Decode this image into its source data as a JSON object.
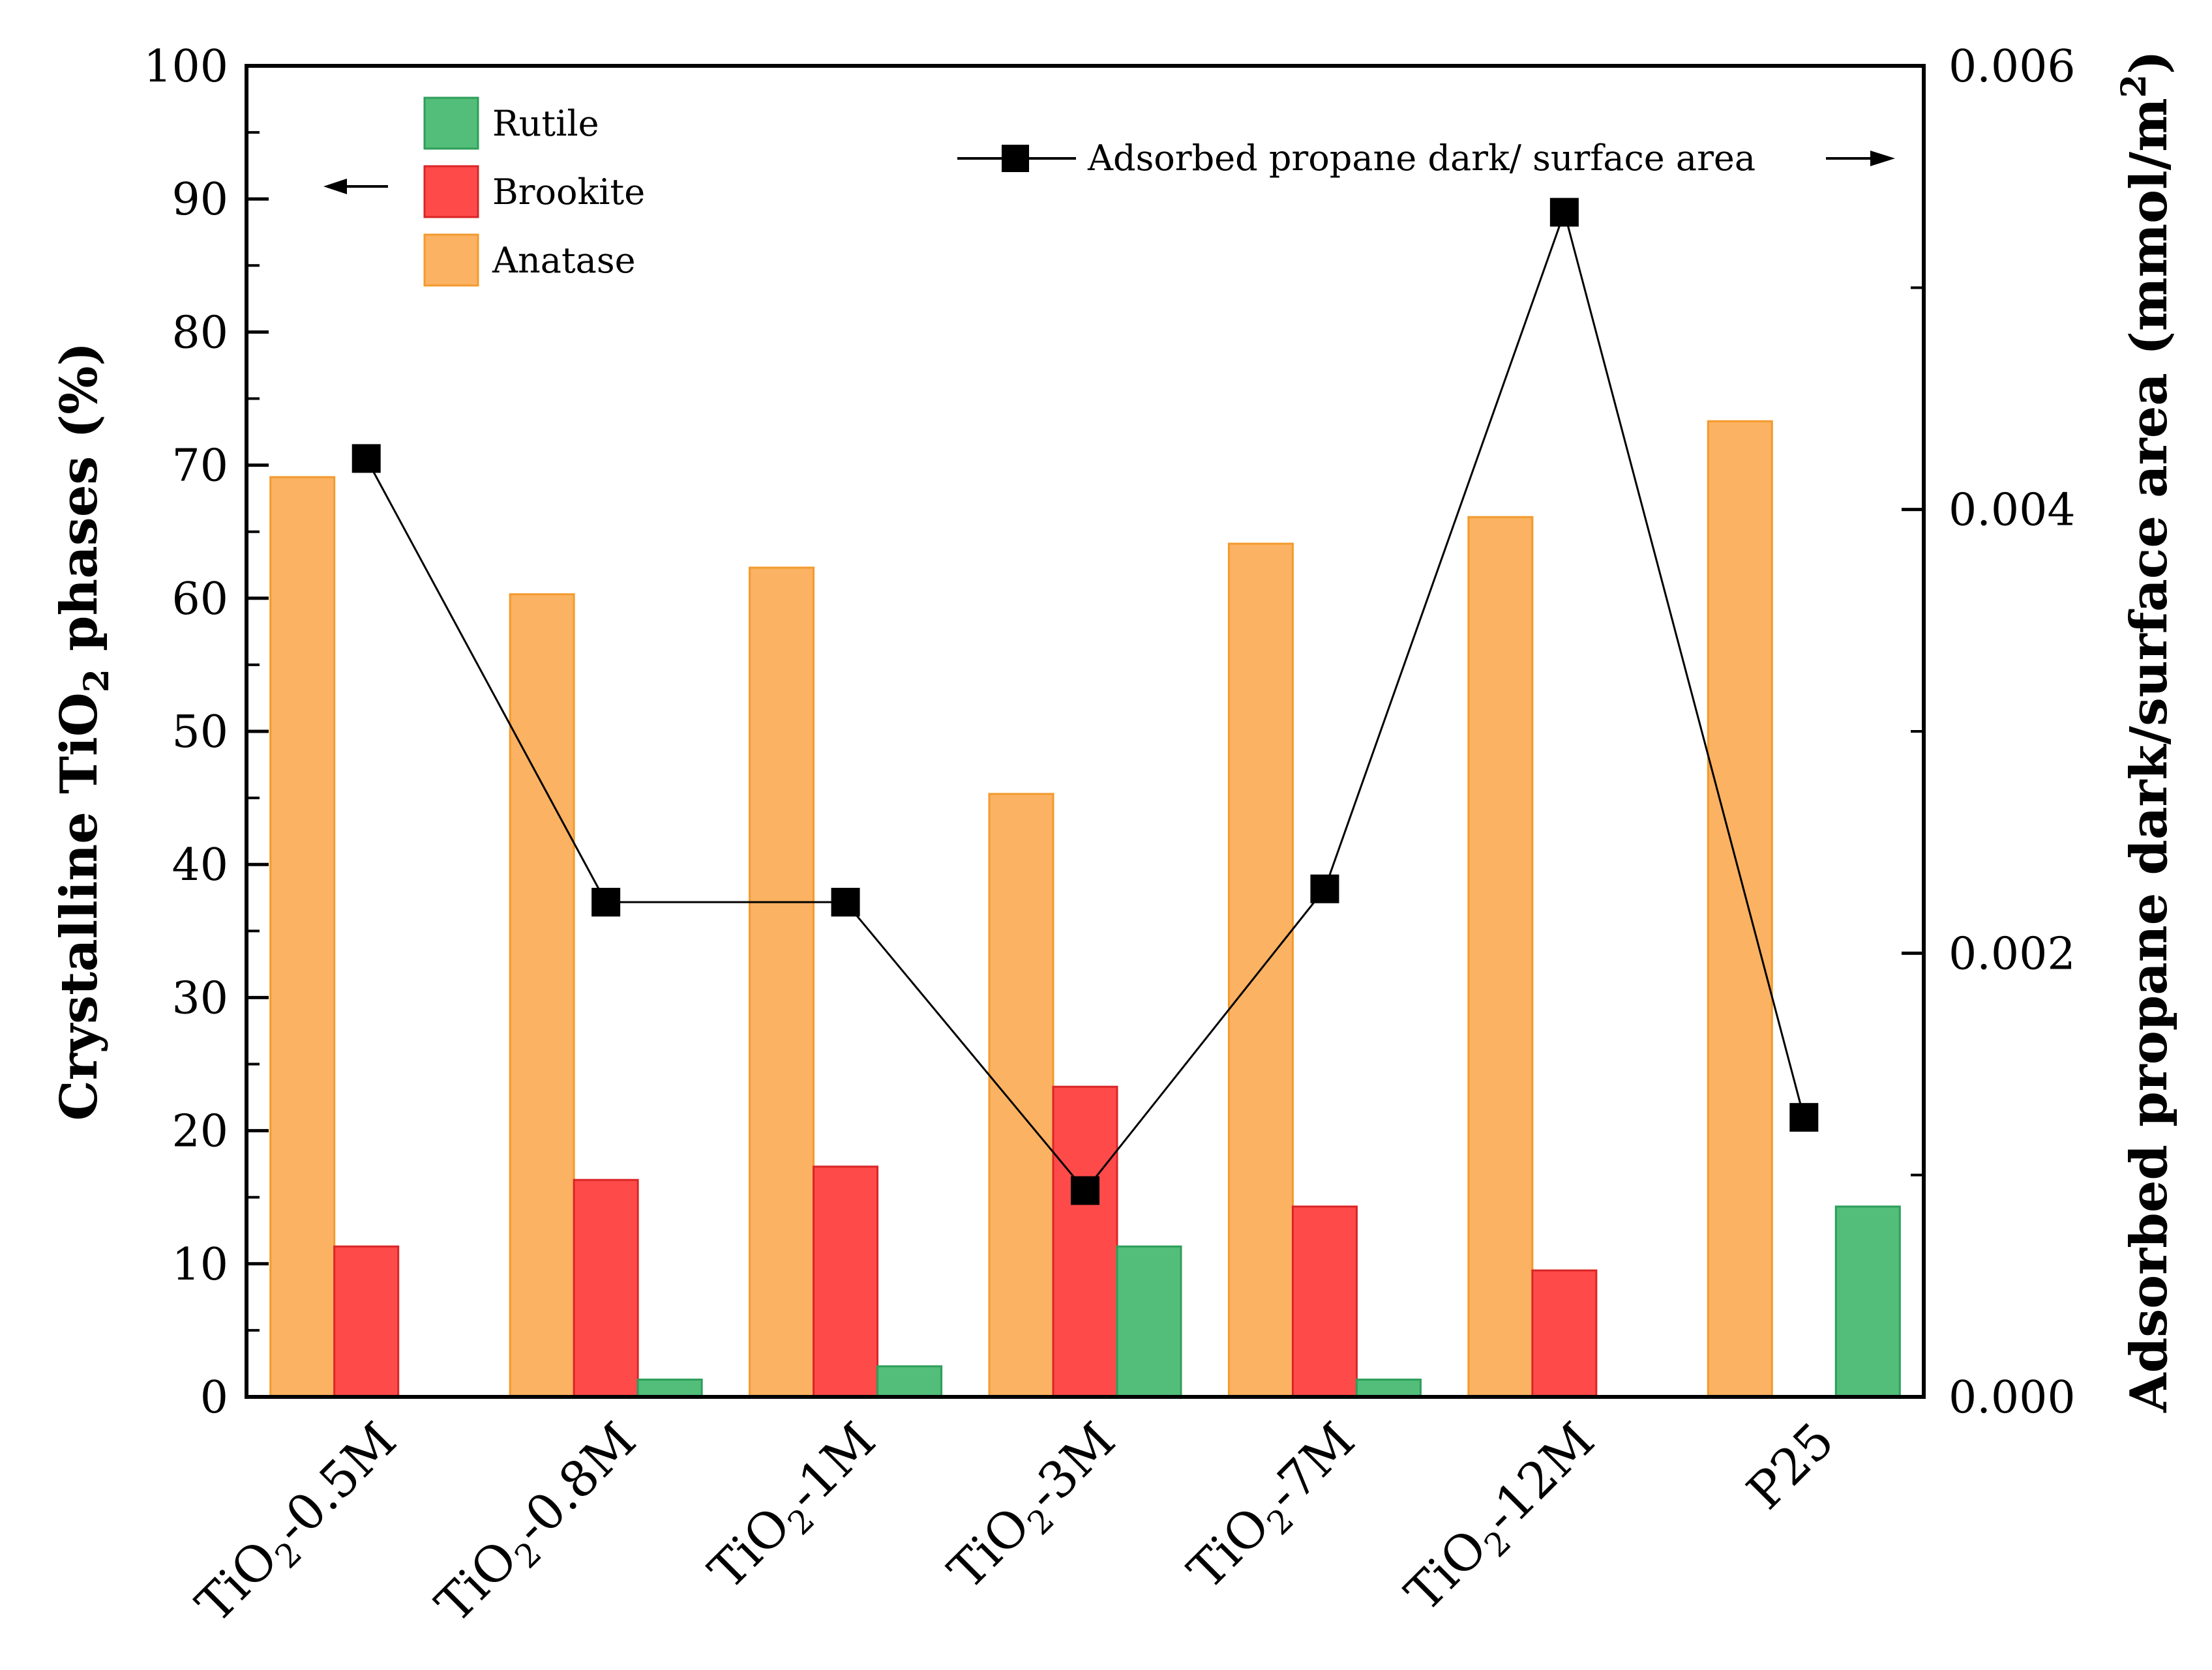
{
  "chart_data": {
    "type": "bar",
    "categories": [
      {
        "main": "TiO",
        "sub": "2",
        "rest": "-0.5M"
      },
      {
        "main": "TiO",
        "sub": "2",
        "rest": "-0.8M"
      },
      {
        "main": "TiO",
        "sub": "2",
        "rest": "-1M"
      },
      {
        "main": "TiO",
        "sub": "2",
        "rest": "-3M"
      },
      {
        "main": "TiO",
        "sub": "2",
        "rest": "-7M"
      },
      {
        "main": "TiO",
        "sub": "2",
        "rest": "-12M"
      },
      {
        "main": "P25",
        "sub": "",
        "rest": ""
      }
    ],
    "series": [
      {
        "name": "Anatase",
        "axis": "left",
        "kind": "bar",
        "color": "#FBB262",
        "edge": "#F39A2E",
        "values": [
          69.1,
          60.3,
          62.3,
          45.3,
          64.1,
          66.1,
          73.3
        ]
      },
      {
        "name": "Brookite",
        "axis": "left",
        "kind": "bar",
        "color": "#FF4A4A",
        "edge": "#D92626",
        "values": [
          11.3,
          16.3,
          17.3,
          23.3,
          14.3,
          9.5,
          0
        ]
      },
      {
        "name": "Rutile",
        "axis": "left",
        "kind": "bar",
        "color": "#52BE7A",
        "edge": "#2E9E5A",
        "values": [
          0,
          1.3,
          2.3,
          11.3,
          1.3,
          0,
          14.3
        ]
      },
      {
        "name": "Adsorbed propane dark/ surface area",
        "axis": "right",
        "kind": "line",
        "color": "#000000",
        "values": [
          0.00423,
          0.00223,
          0.00223,
          0.00093,
          0.00229,
          0.00534,
          0.00126
        ]
      }
    ],
    "left_axis": {
      "title_parts": [
        "Crystalline TiO",
        "2",
        " phases (%)"
      ],
      "ylim": [
        0,
        100
      ],
      "ticks": [
        "0",
        "10",
        "20",
        "30",
        "40",
        "50",
        "60",
        "70",
        "80",
        "90",
        "100"
      ]
    },
    "right_axis": {
      "title_parts": [
        "Adsorbed propane dark/surface area (mmol/m",
        "2",
        ")"
      ],
      "ylim": [
        0,
        0.006
      ],
      "ticks": [
        "0.000",
        "0.002",
        "0.004",
        "0.006"
      ]
    },
    "legend": {
      "bar_entries": [
        "Rutile",
        "Brookite",
        "Anatase"
      ],
      "line_entry": "Adsorbed propane dark/ surface area",
      "placement": "top"
    }
  }
}
